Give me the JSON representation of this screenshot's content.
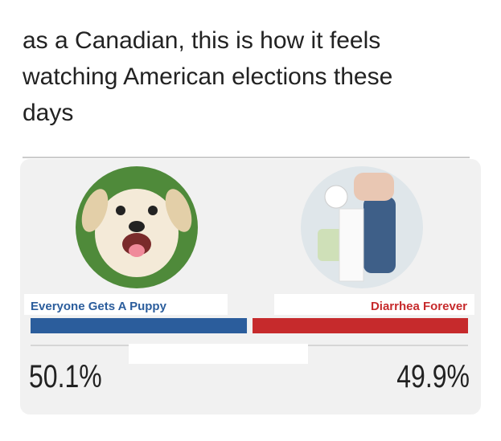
{
  "post": {
    "caption_lines": [
      "as a Canadian, this is how it feels",
      "watching American elections these",
      "days"
    ]
  },
  "poll": {
    "candidates": [
      {
        "name": "Everyone Gets A Puppy",
        "color": "#2b5d9c",
        "value": 50.1,
        "value_label": "50.1%"
      },
      {
        "name": "Diarrhea Forever",
        "color": "#c62a2c",
        "value": 49.9,
        "value_label": "49.9%"
      }
    ]
  }
}
